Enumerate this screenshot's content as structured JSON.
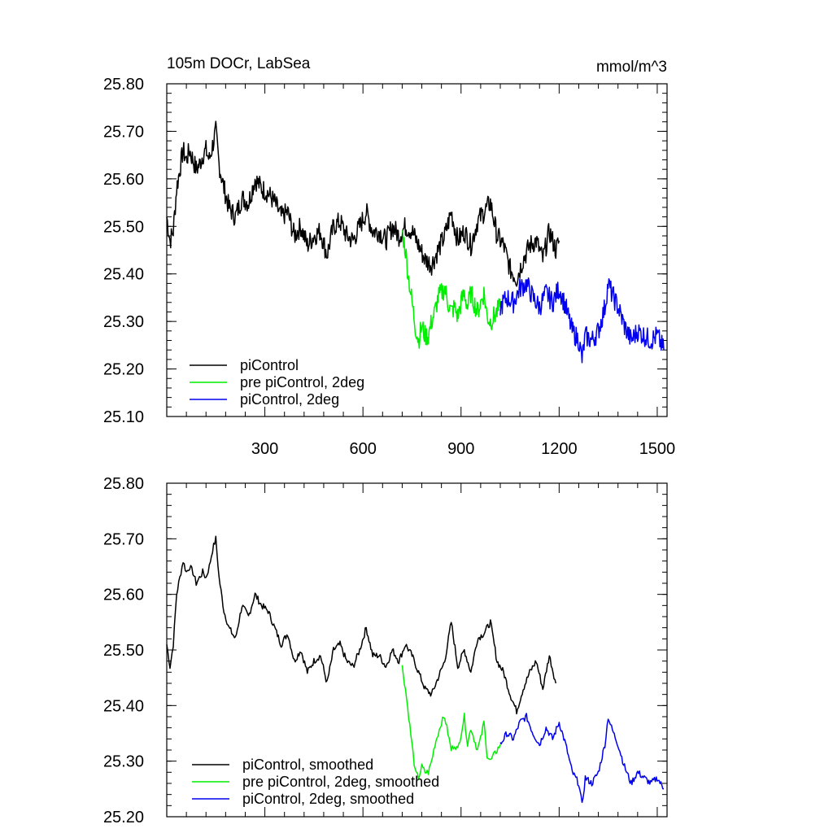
{
  "chart_data": [
    {
      "type": "line",
      "title": "105m DOCr, LabSea",
      "units": "mmol/m^3",
      "xlim": [
        0,
        1530
      ],
      "ylim": [
        25.1,
        25.8
      ],
      "x_ticks": [
        300,
        600,
        900,
        1200,
        1500
      ],
      "x_tick_labels": [
        "300",
        "600",
        "900",
        "1200",
        "1500"
      ],
      "y_ticks": [
        25.1,
        25.2,
        25.3,
        25.4,
        25.5,
        25.6,
        25.7,
        25.8
      ],
      "y_tick_labels": [
        "25.10",
        "25.20",
        "25.30",
        "25.40",
        "25.50",
        "25.60",
        "25.70",
        "25.80"
      ],
      "legend_position": "bottom-left",
      "series": [
        {
          "name": "piControl",
          "color": "#000000",
          "x": [
            0,
            10,
            20,
            30,
            40,
            50,
            60,
            70,
            80,
            90,
            100,
            110,
            120,
            130,
            140,
            150,
            160,
            175,
            190,
            210,
            230,
            250,
            270,
            290,
            310,
            330,
            350,
            370,
            390,
            410,
            430,
            450,
            470,
            490,
            510,
            530,
            550,
            570,
            590,
            610,
            630,
            650,
            670,
            690,
            710,
            730,
            750,
            770,
            790,
            810,
            830,
            850,
            870,
            890,
            910,
            930,
            950,
            970,
            990,
            1010,
            1030,
            1050,
            1070,
            1090,
            1110,
            1130,
            1150,
            1170,
            1190,
            1200
          ],
          "y": [
            25.52,
            25.47,
            25.49,
            25.58,
            25.62,
            25.66,
            25.64,
            25.66,
            25.64,
            25.62,
            25.63,
            25.65,
            25.66,
            25.64,
            25.67,
            25.7,
            25.63,
            25.58,
            25.54,
            25.52,
            25.56,
            25.55,
            25.6,
            25.58,
            25.57,
            25.55,
            25.52,
            25.53,
            25.48,
            25.5,
            25.46,
            25.48,
            25.49,
            25.44,
            25.5,
            25.51,
            25.48,
            25.47,
            25.5,
            25.53,
            25.49,
            25.49,
            25.47,
            25.5,
            25.48,
            25.5,
            25.49,
            25.46,
            25.43,
            25.42,
            25.45,
            25.48,
            25.53,
            25.47,
            25.49,
            25.46,
            25.51,
            25.53,
            25.55,
            25.48,
            25.46,
            25.41,
            25.39,
            25.43,
            25.46,
            25.47,
            25.43,
            25.49,
            25.45,
            25.47
          ]
        },
        {
          "name": "pre piControl, 2deg",
          "color": "#00ee00",
          "x": [
            720,
            730,
            740,
            750,
            760,
            770,
            780,
            790,
            800,
            810,
            820,
            830,
            840,
            850,
            860,
            870,
            880,
            890,
            900,
            910,
            920,
            930,
            940,
            950,
            960,
            970,
            980,
            990,
            1000,
            1010,
            1020
          ],
          "y": [
            25.49,
            25.45,
            25.39,
            25.34,
            25.29,
            25.26,
            25.29,
            25.27,
            25.27,
            25.3,
            25.32,
            25.35,
            25.36,
            25.37,
            25.34,
            25.32,
            25.33,
            25.31,
            25.34,
            25.36,
            25.33,
            25.36,
            25.34,
            25.32,
            25.34,
            25.36,
            25.31,
            25.3,
            25.31,
            25.32,
            25.33
          ]
        },
        {
          "name": "piControl, 2deg",
          "color": "#0000ee",
          "x": [
            1020,
            1040,
            1060,
            1080,
            1100,
            1120,
            1140,
            1160,
            1180,
            1200,
            1220,
            1240,
            1260,
            1270,
            1280,
            1300,
            1320,
            1340,
            1350,
            1360,
            1380,
            1400,
            1420,
            1440,
            1460,
            1480,
            1500,
            1520
          ],
          "y": [
            25.33,
            25.35,
            25.34,
            25.37,
            25.38,
            25.35,
            25.33,
            25.36,
            25.34,
            25.37,
            25.33,
            25.28,
            25.26,
            25.22,
            25.27,
            25.26,
            25.28,
            25.33,
            25.38,
            25.36,
            25.33,
            25.29,
            25.26,
            25.28,
            25.27,
            25.26,
            25.27,
            25.24
          ]
        }
      ]
    },
    {
      "type": "line",
      "xlim": [
        0,
        1530
      ],
      "ylim": [
        25.2,
        25.8
      ],
      "x_ticks": [
        300,
        600,
        900,
        1200,
        1500
      ],
      "y_ticks": [
        25.2,
        25.3,
        25.4,
        25.5,
        25.6,
        25.7,
        25.8
      ],
      "y_tick_labels": [
        "25.20",
        "25.30",
        "25.40",
        "25.50",
        "25.60",
        "25.70",
        "25.80"
      ],
      "legend_position": "bottom-left",
      "series": [
        {
          "name": "piControl, smoothed",
          "color": "#000000",
          "x": [
            0,
            10,
            20,
            30,
            40,
            50,
            60,
            70,
            80,
            90,
            100,
            110,
            120,
            130,
            140,
            150,
            160,
            175,
            190,
            210,
            230,
            250,
            270,
            290,
            310,
            330,
            350,
            370,
            390,
            410,
            430,
            450,
            470,
            490,
            510,
            530,
            550,
            570,
            590,
            610,
            630,
            650,
            670,
            690,
            710,
            730,
            750,
            770,
            790,
            810,
            830,
            850,
            870,
            890,
            910,
            930,
            950,
            970,
            990,
            1010,
            1030,
            1050,
            1070,
            1090,
            1110,
            1130,
            1150,
            1170,
            1190
          ],
          "y": [
            25.51,
            25.47,
            25.51,
            25.6,
            25.63,
            25.66,
            25.64,
            25.65,
            25.64,
            25.62,
            25.63,
            25.64,
            25.63,
            25.65,
            25.68,
            25.7,
            25.63,
            25.57,
            25.54,
            25.52,
            25.58,
            25.56,
            25.6,
            25.58,
            25.57,
            25.54,
            25.51,
            25.53,
            25.48,
            25.5,
            25.46,
            25.48,
            25.49,
            25.44,
            25.5,
            25.51,
            25.48,
            25.47,
            25.5,
            25.54,
            25.49,
            25.49,
            25.47,
            25.5,
            25.48,
            25.51,
            25.49,
            25.46,
            25.43,
            25.42,
            25.45,
            25.48,
            25.55,
            25.47,
            25.5,
            25.46,
            25.52,
            25.53,
            25.55,
            25.48,
            25.46,
            25.42,
            25.39,
            25.43,
            25.46,
            25.48,
            25.43,
            25.49,
            25.44
          ]
        },
        {
          "name": "pre piControl, 2deg, smoothed",
          "color": "#00ee00",
          "x": [
            720,
            730,
            740,
            750,
            760,
            770,
            780,
            790,
            800,
            810,
            820,
            830,
            840,
            850,
            860,
            870,
            880,
            890,
            900,
            910,
            920,
            930,
            940,
            950,
            960,
            970,
            980,
            990,
            1000,
            1010,
            1020
          ],
          "y": [
            25.47,
            25.43,
            25.38,
            25.33,
            25.28,
            25.27,
            25.29,
            25.28,
            25.28,
            25.3,
            25.33,
            25.35,
            25.37,
            25.38,
            25.35,
            25.32,
            25.33,
            25.32,
            25.35,
            25.38,
            25.33,
            25.36,
            25.34,
            25.32,
            25.34,
            25.37,
            25.31,
            25.3,
            25.31,
            25.32,
            25.33
          ]
        },
        {
          "name": "piControl, 2deg, smoothed",
          "color": "#0000ee",
          "x": [
            1020,
            1040,
            1060,
            1080,
            1100,
            1120,
            1140,
            1160,
            1180,
            1200,
            1220,
            1240,
            1260,
            1270,
            1280,
            1300,
            1320,
            1340,
            1350,
            1360,
            1380,
            1400,
            1420,
            1440,
            1460,
            1480,
            1500,
            1520
          ],
          "y": [
            25.33,
            25.35,
            25.34,
            25.37,
            25.38,
            25.35,
            25.33,
            25.36,
            25.34,
            25.37,
            25.33,
            25.28,
            25.26,
            25.22,
            25.27,
            25.26,
            25.28,
            25.33,
            25.38,
            25.36,
            25.33,
            25.29,
            25.26,
            25.28,
            25.27,
            25.26,
            25.27,
            25.25
          ]
        }
      ]
    }
  ]
}
